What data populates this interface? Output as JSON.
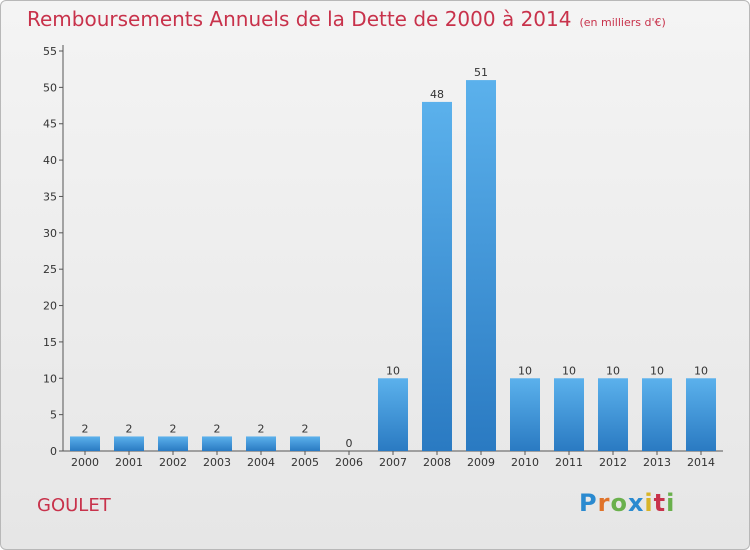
{
  "chart_data": {
    "type": "bar",
    "title": "Remboursements Annuels de la Dette de 2000 à 2014",
    "subtitle": "(en milliers d'€)",
    "xlabel": "",
    "ylabel": "",
    "categories": [
      "2000",
      "2001",
      "2002",
      "2003",
      "2004",
      "2005",
      "2006",
      "2007",
      "2008",
      "2009",
      "2010",
      "2011",
      "2012",
      "2013",
      "2014"
    ],
    "values": [
      2,
      2,
      2,
      2,
      2,
      2,
      0,
      10,
      48,
      51,
      10,
      10,
      10,
      10,
      10
    ],
    "ylim": [
      0,
      55
    ],
    "yticks": [
      0,
      5,
      10,
      15,
      20,
      25,
      30,
      35,
      40,
      45,
      50,
      55
    ],
    "grid": false,
    "bar_color": "#3a8fd6"
  },
  "footer": {
    "commune": "GOULET",
    "logo_letters": [
      "P",
      "r",
      "o",
      "x",
      "i",
      "t",
      "i"
    ]
  }
}
